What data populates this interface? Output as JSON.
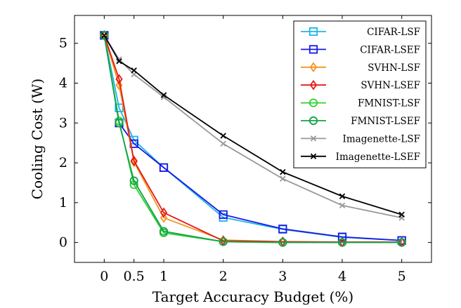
{
  "chart_data": {
    "type": "line",
    "title": "",
    "xlabel": "Target Accuracy Budget (%)",
    "ylabel": "Cooling Cost (W)",
    "xlim": [
      -0.5,
      5.5
    ],
    "ylim": [
      -0.5,
      5.7
    ],
    "xticks": [
      0,
      0.5,
      1,
      2,
      3,
      4,
      5
    ],
    "xtick_labels": [
      "0",
      "0.5",
      "1",
      "2",
      "3",
      "4",
      "5"
    ],
    "yticks": [
      0,
      1,
      2,
      3,
      4,
      5
    ],
    "ytick_labels": [
      "0",
      "1",
      "2",
      "3",
      "4",
      "5"
    ],
    "grid": false,
    "legend_position": "top-right",
    "x": [
      0,
      0.25,
      0.5,
      1,
      2,
      3,
      4,
      5
    ],
    "series": [
      {
        "name": "CIFAR-LSF",
        "color": "#1fb4e6",
        "marker": "square",
        "values": [
          5.2,
          3.38,
          2.57,
          1.88,
          0.63,
          0.33,
          0.13,
          0.05
        ]
      },
      {
        "name": "CIFAR-LSEF",
        "color": "#1a1ae6",
        "marker": "square",
        "values": [
          5.2,
          3.0,
          2.48,
          1.88,
          0.7,
          0.34,
          0.14,
          0.05
        ]
      },
      {
        "name": "SVHN-LSF",
        "color": "#f5941f",
        "marker": "diamond",
        "values": [
          5.2,
          3.95,
          2.02,
          0.62,
          0.06,
          0.02,
          0.01,
          0.01
        ]
      },
      {
        "name": "SVHN-LSEF",
        "color": "#e31a1a",
        "marker": "diamond",
        "values": [
          5.2,
          4.1,
          2.05,
          0.75,
          0.04,
          0.02,
          0.01,
          0.01
        ]
      },
      {
        "name": "FMNIST-LSF",
        "color": "#2bd12b",
        "marker": "circle",
        "values": [
          5.2,
          3.05,
          1.45,
          0.24,
          0.02,
          0.0,
          0.0,
          0.0
        ]
      },
      {
        "name": "FMNIST-LSEF",
        "color": "#13a34a",
        "marker": "circle",
        "values": [
          5.2,
          3.0,
          1.55,
          0.28,
          0.02,
          0.0,
          0.0,
          0.0
        ]
      },
      {
        "name": "Imagenette-LSF",
        "color": "#999999",
        "marker": "x",
        "values": [
          5.2,
          4.6,
          4.22,
          3.65,
          2.48,
          1.6,
          0.93,
          0.62
        ]
      },
      {
        "name": "Imagenette-LSEF",
        "color": "#000000",
        "marker": "x",
        "values": [
          5.2,
          4.55,
          4.32,
          3.7,
          2.68,
          1.77,
          1.16,
          0.7
        ]
      }
    ]
  }
}
